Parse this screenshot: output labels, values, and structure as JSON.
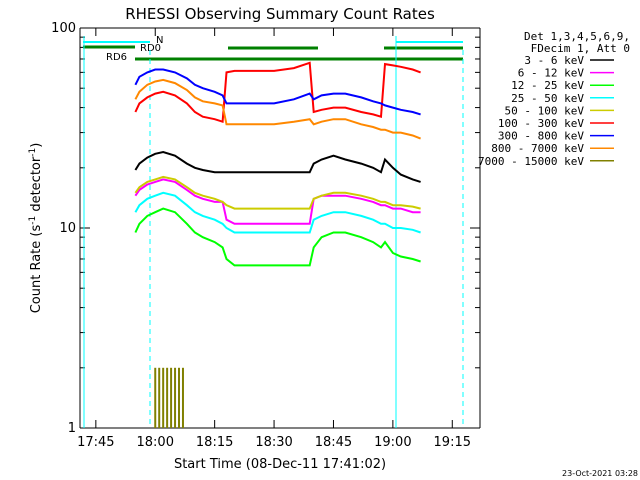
{
  "chart_data": {
    "type": "line",
    "title": "RHESSI Observing Summary Count Rates",
    "xlabel": "Start Time (08-Dec-11 17:41:02)",
    "ylabel_main": "Count Rate (s",
    "ylabel_sup1": "-1",
    "ylabel_mid": " detector",
    "ylabel_sup2": "-1",
    "ylabel_end": ")",
    "y_scale": "log",
    "ylim": [
      1,
      100
    ],
    "y_ticks": [
      {
        "value": 1,
        "label": "1"
      },
      {
        "value": 10,
        "label": "10"
      },
      {
        "value": 100,
        "label": "100"
      }
    ],
    "xlim": [
      "17:41",
      "19:22"
    ],
    "x_ticks": [
      "17:45",
      "18:00",
      "18:15",
      "18:30",
      "18:45",
      "19:00",
      "19:15"
    ],
    "legend_header": [
      "Det 1,3,4,5,6,9,",
      "FDecim 1, Att 0"
    ],
    "timestamp": "23-Oct-2021 03:28",
    "series": [
      {
        "name": "3 - 6 keV",
        "color": "#000000",
        "x": [
          "17:55",
          "17:56",
          "17:58",
          "18:00",
          "18:02",
          "18:05",
          "18:08",
          "18:10",
          "18:12",
          "18:15",
          "18:17",
          "18:18",
          "18:20",
          "18:25",
          "18:30",
          "18:35",
          "18:39",
          "18:40",
          "18:42",
          "18:45",
          "18:48",
          "18:52",
          "18:55",
          "18:57",
          "18:58",
          "19:00",
          "19:02",
          "19:05",
          "19:07"
        ],
        "y": [
          19.5,
          21,
          22.5,
          23.5,
          24,
          23,
          21,
          20,
          19.5,
          19,
          19,
          19,
          19,
          19,
          19,
          19,
          19,
          21,
          22,
          23,
          22,
          21,
          20,
          19,
          22,
          20,
          18.5,
          17.5,
          17
        ]
      },
      {
        "name": "6 - 12 keV",
        "color": "#ff00ff",
        "x": [
          "17:55",
          "17:56",
          "17:58",
          "18:00",
          "18:02",
          "18:05",
          "18:08",
          "18:10",
          "18:12",
          "18:15",
          "18:17",
          "18:18",
          "18:20",
          "18:25",
          "18:30",
          "18:35",
          "18:39",
          "18:40",
          "18:42",
          "18:45",
          "18:48",
          "18:52",
          "18:55",
          "18:57",
          "18:58",
          "19:00",
          "19:02",
          "19:05",
          "19:07"
        ],
        "y": [
          14.5,
          15.5,
          16.5,
          17,
          17.5,
          17,
          15.5,
          14.5,
          14,
          13.5,
          13.5,
          11,
          10.5,
          10.5,
          10.5,
          10.5,
          10.5,
          14,
          14.5,
          14.5,
          14.5,
          14,
          13.5,
          13,
          13,
          12.5,
          12.5,
          12,
          12
        ]
      },
      {
        "name": "12 - 25 keV",
        "color": "#00ff00",
        "x": [
          "17:55",
          "17:56",
          "17:58",
          "18:00",
          "18:02",
          "18:05",
          "18:08",
          "18:10",
          "18:12",
          "18:15",
          "18:17",
          "18:18",
          "18:20",
          "18:25",
          "18:30",
          "18:35",
          "18:39",
          "18:40",
          "18:42",
          "18:45",
          "18:48",
          "18:52",
          "18:55",
          "18:57",
          "18:58",
          "19:00",
          "19:02",
          "19:05",
          "19:07"
        ],
        "y": [
          9.5,
          10.5,
          11.5,
          12,
          12.5,
          12,
          10.5,
          9.5,
          9,
          8.5,
          8,
          7,
          6.5,
          6.5,
          6.5,
          6.5,
          6.5,
          8,
          9,
          9.5,
          9.5,
          9,
          8.5,
          8,
          8.5,
          7.5,
          7.2,
          7,
          6.8
        ]
      },
      {
        "name": "25 - 50 keV",
        "color": "#00ffff",
        "x": [
          "17:55",
          "17:56",
          "17:58",
          "18:00",
          "18:02",
          "18:05",
          "18:08",
          "18:10",
          "18:12",
          "18:15",
          "18:17",
          "18:18",
          "18:20",
          "18:25",
          "18:30",
          "18:35",
          "18:39",
          "18:40",
          "18:42",
          "18:45",
          "18:48",
          "18:52",
          "18:55",
          "18:57",
          "18:58",
          "19:00",
          "19:02",
          "19:05",
          "19:07"
        ],
        "y": [
          12,
          13,
          14,
          14.5,
          15,
          14.5,
          13,
          12,
          11.5,
          11,
          10.5,
          10,
          9.5,
          9.5,
          9.5,
          9.5,
          9.5,
          11,
          11.5,
          12,
          12,
          11.5,
          11,
          10.5,
          10.5,
          10,
          10,
          9.8,
          9.5
        ]
      },
      {
        "name": "50 - 100 keV",
        "color": "#cccc00",
        "x": [
          "17:55",
          "17:56",
          "17:58",
          "18:00",
          "18:02",
          "18:05",
          "18:08",
          "18:10",
          "18:12",
          "18:15",
          "18:17",
          "18:18",
          "18:20",
          "18:25",
          "18:30",
          "18:35",
          "18:39",
          "18:40",
          "18:42",
          "18:45",
          "18:48",
          "18:52",
          "18:55",
          "18:57",
          "18:58",
          "19:00",
          "19:02",
          "19:05",
          "19:07"
        ],
        "y": [
          15,
          16,
          17,
          17.5,
          18,
          17.5,
          16,
          15,
          14.5,
          14,
          13.5,
          13,
          12.5,
          12.5,
          12.5,
          12.5,
          12.5,
          14,
          14.5,
          15,
          15,
          14.5,
          14,
          13.5,
          13.5,
          13,
          13,
          12.8,
          12.5
        ]
      },
      {
        "name": "100 - 300 keV",
        "color": "#ff0000",
        "x": [
          "17:55",
          "17:56",
          "17:58",
          "18:00",
          "18:02",
          "18:05",
          "18:08",
          "18:10",
          "18:12",
          "18:15",
          "18:17",
          "18:18",
          "18:20",
          "18:25",
          "18:30",
          "18:35",
          "18:39",
          "18:40",
          "18:42",
          "18:45",
          "18:48",
          "18:52",
          "18:55",
          "18:57",
          "18:58",
          "19:00",
          "19:02",
          "19:05",
          "19:07"
        ],
        "y": [
          38,
          42,
          45,
          47,
          48,
          46,
          42,
          38,
          36,
          35,
          34,
          60,
          61,
          61,
          61,
          63,
          67,
          38,
          39,
          40,
          40,
          38,
          37,
          36,
          66,
          65,
          64,
          62,
          60
        ]
      },
      {
        "name": "300 - 800 keV",
        "color": "#0000ff",
        "x": [
          "17:55",
          "17:56",
          "17:58",
          "18:00",
          "18:02",
          "18:05",
          "18:08",
          "18:10",
          "18:12",
          "18:15",
          "18:17",
          "18:18",
          "18:20",
          "18:25",
          "18:30",
          "18:35",
          "18:39",
          "18:40",
          "18:42",
          "18:45",
          "18:48",
          "18:52",
          "18:55",
          "18:57",
          "18:58",
          "19:00",
          "19:02",
          "19:05",
          "19:07"
        ],
        "y": [
          52,
          57,
          60,
          62,
          62,
          60,
          56,
          52,
          50,
          48,
          46,
          42,
          42,
          42,
          42,
          44,
          47,
          44,
          46,
          47,
          47,
          45,
          43,
          42,
          41,
          40,
          39,
          38,
          37
        ]
      },
      {
        "name": "800 - 7000 keV",
        "color": "#ff8800",
        "x": [
          "17:55",
          "17:56",
          "17:58",
          "18:00",
          "18:02",
          "18:05",
          "18:08",
          "18:10",
          "18:12",
          "18:15",
          "18:17",
          "18:18",
          "18:20",
          "18:25",
          "18:30",
          "18:35",
          "18:39",
          "18:40",
          "18:42",
          "18:45",
          "18:48",
          "18:52",
          "18:55",
          "18:57",
          "18:58",
          "19:00",
          "19:02",
          "19:05",
          "19:07"
        ],
        "y": [
          44,
          48,
          52,
          54,
          55,
          53,
          49,
          45,
          43,
          42,
          41,
          33,
          33,
          33,
          33,
          34,
          35,
          33,
          34,
          35,
          35,
          33,
          32,
          31,
          31,
          30,
          30,
          29,
          28
        ]
      },
      {
        "name": "7000 - 15000 keV",
        "color": "#808000",
        "x": [
          "18:00",
          "18:00.5",
          "18:01",
          "18:01.5",
          "18:02",
          "18:02.5",
          "18:03",
          "18:03.5",
          "18:04",
          "18:04.5",
          "18:05",
          "18:05.5",
          "18:06",
          "18:06.5",
          "18:07"
        ],
        "y": [
          2,
          1,
          2,
          1,
          2,
          1,
          2,
          1,
          2,
          1,
          2,
          1,
          2,
          1,
          2
        ]
      }
    ],
    "markers": {
      "n_label": "N",
      "rd0_label": "RD0",
      "rd6_label": "RD6"
    },
    "grid": false,
    "legend_placement": "right"
  }
}
